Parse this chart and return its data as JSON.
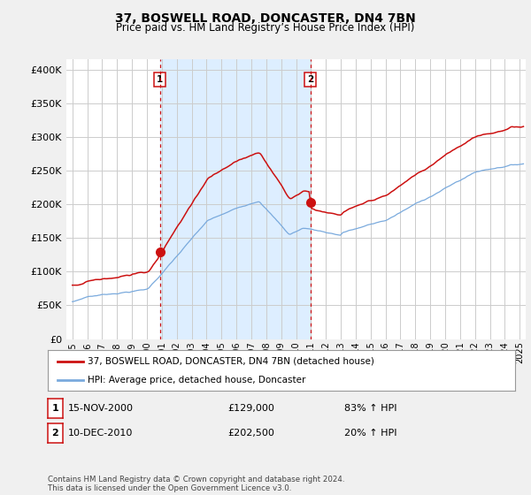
{
  "title": "37, BOSWELL ROAD, DONCASTER, DN4 7BN",
  "subtitle": "Price paid vs. HM Land Registry’s House Price Index (HPI)",
  "ylabel_ticks": [
    "£0",
    "£50K",
    "£100K",
    "£150K",
    "£200K",
    "£250K",
    "£300K",
    "£350K",
    "£400K"
  ],
  "ytick_values": [
    0,
    50000,
    100000,
    150000,
    200000,
    250000,
    300000,
    350000,
    400000
  ],
  "ylim": [
    0,
    415000
  ],
  "xlim_start": 1994.6,
  "xlim_end": 2025.4,
  "hpi_color": "#7aaadd",
  "price_color": "#cc1111",
  "vline_color": "#cc1111",
  "shade_color": "#ddeeff",
  "marker1_year": 2000.875,
  "marker1_price": 129000,
  "marker2_year": 2010.958,
  "marker2_price": 202500,
  "legend_label1": "37, BOSWELL ROAD, DONCASTER, DN4 7BN (detached house)",
  "legend_label2": "HPI: Average price, detached house, Doncaster",
  "table_rows": [
    {
      "num": "1",
      "date": "15-NOV-2000",
      "price": "£129,000",
      "change": "83% ↑ HPI"
    },
    {
      "num": "2",
      "date": "10-DEC-2010",
      "price": "£202,500",
      "change": "20% ↑ HPI"
    }
  ],
  "footer": "Contains HM Land Registry data © Crown copyright and database right 2024.\nThis data is licensed under the Open Government Licence v3.0.",
  "background_color": "#f0f0f0",
  "plot_bg_color": "#ffffff",
  "grid_color": "#cccccc"
}
